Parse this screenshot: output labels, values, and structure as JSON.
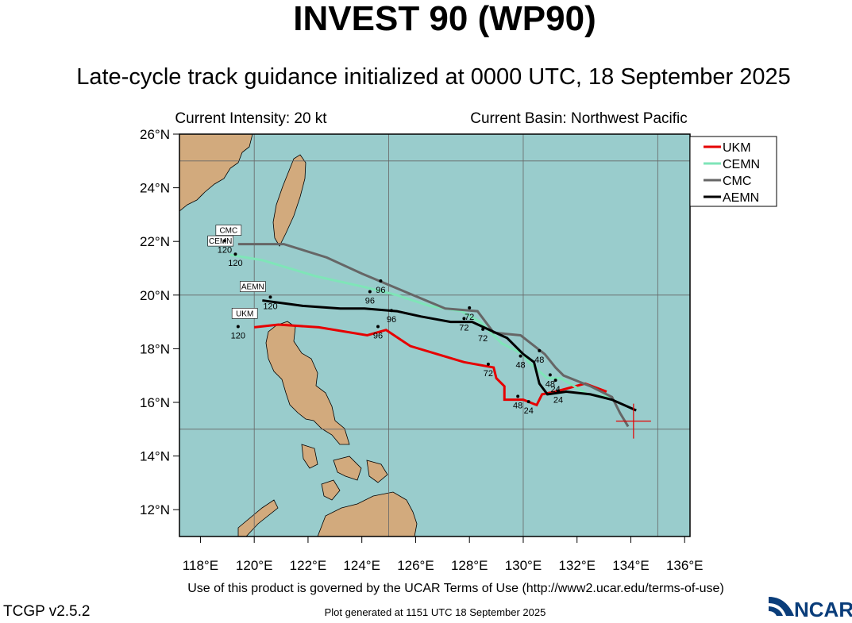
{
  "header": {
    "title": "INVEST 90 (WP90)",
    "subtitle": "Late-cycle track guidance initialized at 0000 UTC, 18 September 2025",
    "intensity": "Current Intensity: 20 kt",
    "basin": "Current Basin: Northwest Pacific"
  },
  "map": {
    "xlim": [
      117.22,
      136.2
    ],
    "ylim": [
      11,
      26
    ],
    "xticks": [
      {
        "value": 118,
        "label": "118°E"
      },
      {
        "value": 120,
        "label": "120°E"
      },
      {
        "value": 122,
        "label": "122°E"
      },
      {
        "value": 124,
        "label": "124°E"
      },
      {
        "value": 126,
        "label": "126°E"
      },
      {
        "value": 128,
        "label": "128°E"
      },
      {
        "value": 130,
        "label": "130°E"
      },
      {
        "value": 132,
        "label": "132°E"
      },
      {
        "value": 134,
        "label": "134°E"
      },
      {
        "value": 136,
        "label": "136°E"
      }
    ],
    "yticks": [
      {
        "value": 12,
        "label": "12°N"
      },
      {
        "value": 14,
        "label": "14°N"
      },
      {
        "value": 16,
        "label": "16°N"
      },
      {
        "value": 18,
        "label": "18°N"
      },
      {
        "value": 20,
        "label": "20°N"
      },
      {
        "value": 22,
        "label": "22°N"
      },
      {
        "value": 24,
        "label": "24°N"
      },
      {
        "value": 26,
        "label": "26°N"
      }
    ],
    "xgrid": [
      120,
      125,
      130,
      135
    ],
    "ygrid": [
      15,
      20,
      25
    ],
    "current_position": {
      "lon": 134.1,
      "lat": 15.3,
      "color": "#e60000"
    },
    "series": [
      {
        "name": "UKM",
        "color": "#e60000",
        "lon": [
          133.1,
          132.3,
          131.2,
          130.7,
          130.5,
          130.0,
          129.3,
          129.3,
          129.0,
          128.9,
          127.8,
          126.8,
          125.8,
          124.9,
          124.2,
          122.4,
          120.9,
          120.0
        ],
        "lat": [
          16.4,
          16.7,
          16.4,
          16.3,
          15.9,
          16.1,
          16.1,
          16.6,
          16.9,
          17.3,
          17.5,
          17.8,
          18.1,
          18.7,
          18.5,
          18.8,
          18.9,
          18.8
        ],
        "hours": [
          {
            "text": "24",
            "lon": 130.2,
            "lat": 15.7
          },
          {
            "text": "48",
            "lon": 129.8,
            "lat": 15.9
          },
          {
            "text": "72",
            "lon": 128.7,
            "lat": 17.1
          },
          {
            "text": "96",
            "lon": 124.6,
            "lat": 18.5
          },
          {
            "text": "120",
            "lon": 119.4,
            "lat": 18.5
          }
        ]
      },
      {
        "name": "CEMN",
        "color": "#7fe5b8",
        "lon": [
          133.2,
          132.4,
          131.4,
          130.9,
          130.2,
          130.0,
          129.2,
          128.4,
          127.7,
          126.5,
          125.3,
          124.1,
          122.3,
          120.3,
          119.1
        ],
        "lat": [
          16.2,
          16.3,
          16.9,
          16.9,
          17.5,
          17.8,
          18.2,
          19.0,
          19.4,
          19.6,
          20.0,
          20.3,
          20.7,
          21.3,
          21.5
        ],
        "hours": [
          {
            "text": "24",
            "lon": 131.3,
            "lat": 16.1
          },
          {
            "text": "48",
            "lon": 131.0,
            "lat": 16.7
          },
          {
            "text": "72",
            "lon": 128.5,
            "lat": 18.4
          },
          {
            "text": "96",
            "lon": 124.3,
            "lat": 19.8
          },
          {
            "text": "120",
            "lon": 119.3,
            "lat": 21.2
          }
        ]
      },
      {
        "name": "CMC",
        "color": "#666666",
        "lon": [
          133.9,
          133.6,
          133.3,
          132.5,
          131.5,
          131.2,
          130.8,
          129.9,
          128.9,
          128.3,
          127.1,
          125.9,
          124.0,
          122.7,
          121.1,
          119.4
        ],
        "lat": [
          15.1,
          15.6,
          16.2,
          16.6,
          17.0,
          17.3,
          17.8,
          18.5,
          18.6,
          19.4,
          19.5,
          20.0,
          20.8,
          21.4,
          21.9,
          21.9
        ],
        "hours": [
          {
            "text": "48",
            "lon": 130.6,
            "lat": 17.6
          },
          {
            "text": "72",
            "lon": 128.0,
            "lat": 19.2
          },
          {
            "text": "96",
            "lon": 124.7,
            "lat": 20.2
          },
          {
            "text": "120",
            "lon": 118.9,
            "lat": 21.7
          }
        ]
      },
      {
        "name": "AEMN",
        "color": "#000000",
        "lon": [
          134.2,
          133.3,
          132.5,
          131.6,
          130.9,
          130.6,
          130.4,
          130.0,
          129.4,
          128.1,
          127.3,
          126.2,
          125.3,
          124.1,
          123.2,
          121.8,
          120.3
        ],
        "lat": [
          15.7,
          16.1,
          16.3,
          16.4,
          16.3,
          16.7,
          17.5,
          17.8,
          18.4,
          19.0,
          19.0,
          19.2,
          19.4,
          19.5,
          19.5,
          19.6,
          19.8
        ],
        "hours": [
          {
            "text": "24",
            "lon": 131.2,
            "lat": 16.5
          },
          {
            "text": "48",
            "lon": 129.9,
            "lat": 17.4
          },
          {
            "text": "72",
            "lon": 127.8,
            "lat": 18.8
          },
          {
            "text": "96",
            "lon": 125.1,
            "lat": 19.1
          },
          {
            "text": "120",
            "lon": 120.6,
            "lat": 19.6
          }
        ]
      }
    ]
  },
  "footer": {
    "terms": "Use of this product is governed by the UCAR Terms of Use (http://www2.ucar.edu/terms-of-use)",
    "version": "TCGP v2.5.2",
    "generated": "Plot generated at 1151 UTC   18 September 2025",
    "logo": "NCAR"
  }
}
